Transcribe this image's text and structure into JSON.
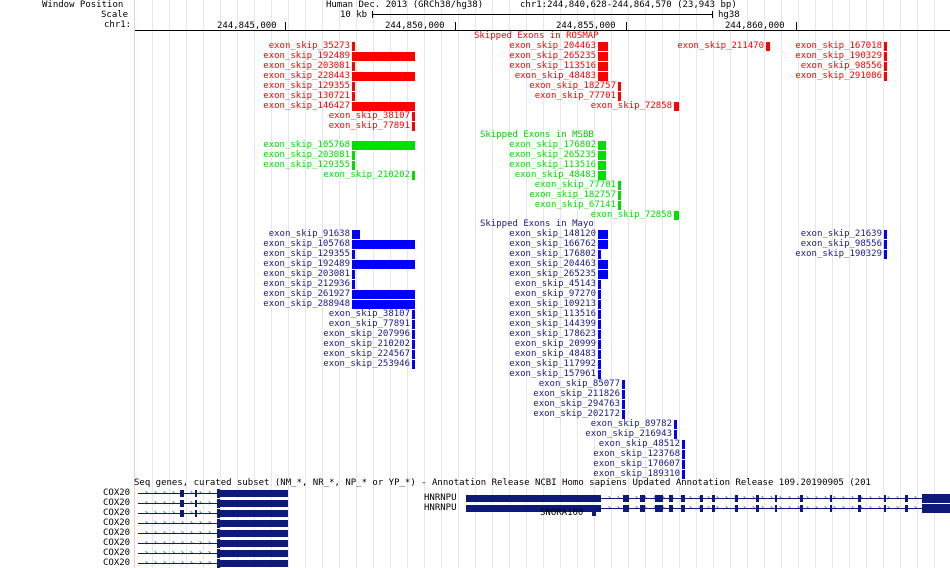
{
  "ruler": {
    "window_label": "Window Position",
    "scale_label": "Scale",
    "chrom_label": "chr1:",
    "assembly": "Human Dec. 2013 (GRCh38/hg38)",
    "position": "chr1:244,840,628-244,864,570 (23,943 bp)",
    "scale_text": "10 kb",
    "scale_db": "hg38",
    "ticks": [
      "244,845,000",
      "244,850,000",
      "244,855,000",
      "244,860,000"
    ]
  },
  "colors": {
    "rosmap": "#ff0000",
    "msbb": "#00e000",
    "mayo": "#0000ff",
    "gene": "#0d1a7a",
    "label_blue": "#1a1a8c"
  },
  "tracks": {
    "rosmap": {
      "title": "Skipped Exons in ROSMAP",
      "items": [
        "exon_skip_35273",
        "exon_skip_192489",
        "exon_skip_203081",
        "exon_skip_228443",
        "exon_skip_129355",
        "exon_skip_130721",
        "exon_skip_146427",
        "exon_skip_38107",
        "exon_skip_77891",
        "exon_skip_204463",
        "exon_skip_265235",
        "exon_skip_113516",
        "exon_skip_48483",
        "exon_skip_182757",
        "exon_skip_77701",
        "exon_skip_72858",
        "exon_skip_211470",
        "exon_skip_167018",
        "exon_skip_190329",
        "exon_skip_98556",
        "exon_skip_291086"
      ]
    },
    "msbb": {
      "title": "Skipped Exons in MSBB",
      "items": [
        "exon_skip_105768",
        "exon_skip_203081",
        "exon_skip_129355",
        "exon_skip_210202",
        "exon_skip_176802",
        "exon_skip_265235",
        "exon_skip_113516",
        "exon_skip_48483",
        "exon_skip_77701",
        "exon_skip_182757",
        "exon_skip_67141",
        "exon_skip_72858"
      ]
    },
    "mayo": {
      "title": "Skipped Exons in Mayo",
      "items": [
        "exon_skip_91638",
        "exon_skip_105768",
        "exon_skip_129355",
        "exon_skip_192489",
        "exon_skip_203081",
        "exon_skip_212936",
        "exon_skip_261927",
        "exon_skip_288948",
        "exon_skip_38107",
        "exon_skip_77891",
        "exon_skip_207996",
        "exon_skip_210202",
        "exon_skip_224567",
        "exon_skip_253946",
        "exon_skip_148120",
        "exon_skip_166762",
        "exon_skip_176802",
        "exon_skip_204463",
        "exon_skip_265235",
        "exon_skip_45143",
        "exon_skip_97270",
        "exon_skip_109213",
        "exon_skip_113516",
        "exon_skip_144399",
        "exon_skip_178623",
        "exon_skip_20999",
        "exon_skip_48483",
        "exon_skip_117992",
        "exon_skip_157961",
        "exon_skip_85077",
        "exon_skip_211826",
        "exon_skip_294763",
        "exon_skip_202172",
        "exon_skip_89782",
        "exon_skip_216943",
        "exon_skip_48512",
        "exon_skip_123768",
        "exon_skip_170607",
        "exon_skip_189310",
        "exon_skip_21639",
        "exon_skip_98556",
        "exon_skip_190329"
      ]
    }
  },
  "refseq": {
    "title": "Seq genes, curated subset (NM_*, NR_*, NP_* or YP_*) - Annotation Release NCBI Homo sapiens Updated Annotation Release 109.20190905 (201",
    "genes": [
      "COX20",
      "COX20",
      "COX20",
      "COX20",
      "COX20",
      "COX20",
      "COX20",
      "COX20"
    ],
    "hnrnpu": [
      "HNRNPU",
      "HNRNPU"
    ],
    "snora": "SNORA100"
  }
}
